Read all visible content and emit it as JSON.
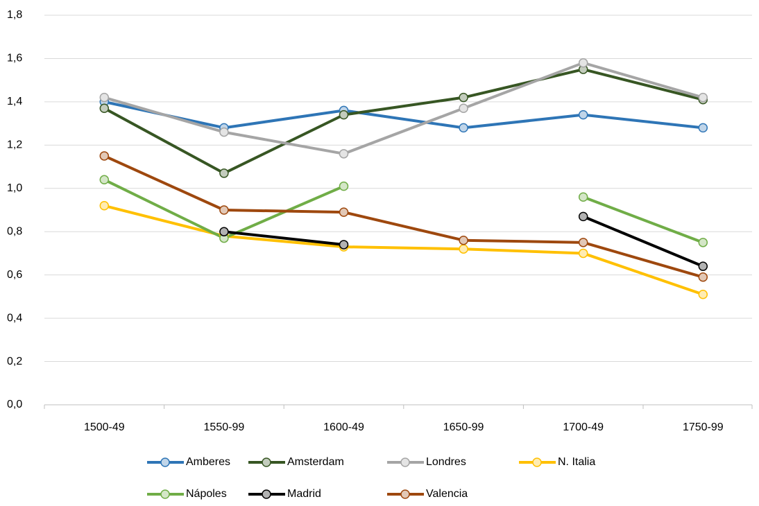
{
  "chart_data": {
    "type": "line",
    "categories": [
      "1500-49",
      "1550-99",
      "1600-49",
      "1650-99",
      "1700-49",
      "1750-99"
    ],
    "series": [
      {
        "name": "Amberes",
        "color": "#2e75b6",
        "values": [
          1.4,
          1.28,
          1.36,
          1.28,
          1.34,
          1.28
        ]
      },
      {
        "name": "Amsterdam",
        "color": "#375623",
        "values": [
          1.37,
          1.07,
          1.34,
          1.42,
          1.55,
          1.41
        ]
      },
      {
        "name": "Londres",
        "color": "#a5a5a5",
        "values": [
          1.42,
          1.26,
          1.16,
          1.37,
          1.58,
          1.42
        ]
      },
      {
        "name": "N. Italia",
        "color": "#ffc000",
        "values": [
          0.92,
          0.78,
          0.73,
          0.72,
          0.7,
          0.51
        ]
      },
      {
        "name": "Nápoles",
        "color": "#70ad47",
        "values": [
          1.04,
          0.77,
          1.01,
          null,
          0.96,
          0.75
        ]
      },
      {
        "name": "Madrid",
        "color": "#000000",
        "values": [
          null,
          0.8,
          0.74,
          null,
          0.87,
          0.64
        ]
      },
      {
        "name": "Valencia",
        "color": "#9e480e",
        "values": [
          1.15,
          0.9,
          0.89,
          0.76,
          0.75,
          0.59
        ]
      }
    ],
    "ylim": [
      0,
      1.8
    ],
    "yticks": [
      {
        "value": 0,
        "label": "0,0"
      },
      {
        "value": 0.2,
        "label": "0,2"
      },
      {
        "value": 0.4,
        "label": "0,4"
      },
      {
        "value": 0.6,
        "label": "0,6"
      },
      {
        "value": 0.8,
        "label": "0,8"
      },
      {
        "value": 1.0,
        "label": "1,0"
      },
      {
        "value": 1.2,
        "label": "1,2"
      },
      {
        "value": 1.4,
        "label": "1,4"
      },
      {
        "value": 1.6,
        "label": "1,6"
      },
      {
        "value": 1.8,
        "label": "1,8"
      }
    ],
    "grid": true,
    "legend": "bottom"
  }
}
